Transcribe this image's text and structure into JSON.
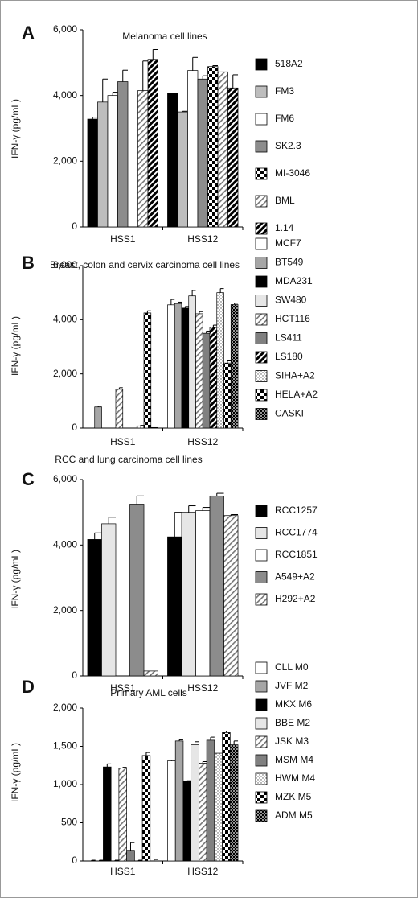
{
  "chart_data": [
    {
      "type": "bar",
      "panel": "A",
      "title": "Melanoma cell lines",
      "ylabel": "IFN-γ (pg/mL)",
      "categories": [
        "HSS1",
        "HSS12"
      ],
      "ylim": [
        0,
        6000
      ],
      "yticks": [
        0,
        {
          "value": 2000,
          "label": "2,000"
        },
        {
          "value": 4000,
          "label": "4,000"
        },
        {
          "value": 6000,
          "label": "6,000"
        }
      ],
      "series": [
        {
          "name": "518A2",
          "color": "#000000",
          "values": [
            3280,
            4080
          ],
          "errors": [
            60,
            null
          ]
        },
        {
          "name": "FM3",
          "color": "#bdbdbd",
          "values": [
            3800,
            3500
          ],
          "errors": [
            700,
            20
          ]
        },
        {
          "name": "FM6",
          "color": "#ffffff",
          "values": [
            4000,
            4760
          ],
          "errors": [
            100,
            400
          ]
        },
        {
          "name": "SK2.3",
          "color": "#8c8c8c",
          "values": [
            4420,
            4500
          ],
          "errors": [
            350,
            100
          ]
        },
        {
          "name": "MI-3046",
          "color": "#000000",
          "pattern": "checker",
          "values": [
            null,
            4880
          ],
          "errors": [
            null,
            30
          ]
        },
        {
          "name": "BML",
          "color": "#909090",
          "pattern": "hatch",
          "values": [
            4150,
            4720
          ],
          "errors": [
            900,
            null
          ]
        },
        {
          "name": "1.14",
          "color": "#000000",
          "pattern": "hatch-dark",
          "values": [
            5100,
            4230
          ],
          "errors": [
            300,
            400
          ]
        }
      ]
    },
    {
      "type": "bar",
      "panel": "B",
      "title": "Breast, colon and cervix carcinoma cell lines",
      "ylabel": "IFN-γ (pg/mL)",
      "categories": [
        "HSS1",
        "HSS12"
      ],
      "ylim": [
        0,
        6000
      ],
      "yticks": [
        0,
        {
          "value": 2000,
          "label": "2,000"
        },
        {
          "value": 4000,
          "label": "4,000"
        },
        {
          "value": 6000,
          "label": "6,000"
        }
      ],
      "series": [
        {
          "name": "MCF7",
          "color": "#ffffff",
          "values": [
            0,
            4550
          ],
          "errors": [
            null,
            200
          ]
        },
        {
          "name": "BT549",
          "color": "#a6a6a6",
          "values": [
            780,
            4600
          ],
          "errors": [
            30,
            50
          ]
        },
        {
          "name": "MDA231",
          "color": "#000000",
          "values": [
            0,
            4430
          ],
          "errors": [
            null,
            60
          ]
        },
        {
          "name": "SW480",
          "color": "#e6e6e6",
          "values": [
            0,
            4880
          ],
          "errors": [
            null,
            200
          ]
        },
        {
          "name": "HCT116",
          "color": "#909090",
          "pattern": "hatch",
          "values": [
            1430,
            4220
          ],
          "errors": [
            60,
            80
          ]
        },
        {
          "name": "LS411",
          "color": "#808080",
          "values": [
            0,
            3500
          ],
          "errors": [
            null,
            80
          ]
        },
        {
          "name": "LS180",
          "color": "#000000",
          "pattern": "hatch-dark",
          "values": [
            0,
            3720
          ],
          "errors": [
            null,
            80
          ]
        },
        {
          "name": "SIHA+A2",
          "color": "#909090",
          "pattern": "dots",
          "values": [
            80,
            5000
          ],
          "errors": [
            20,
            150
          ]
        },
        {
          "name": "HELA+A2",
          "color": "#000000",
          "pattern": "checker",
          "values": [
            4250,
            2400
          ],
          "errors": [
            80,
            80
          ]
        },
        {
          "name": "CASKI",
          "color": "#000000",
          "pattern": "dots-dense",
          "values": [
            20,
            4560
          ],
          "errors": [
            null,
            50
          ]
        }
      ]
    },
    {
      "type": "bar",
      "panel": "C",
      "title": "RCC and lung  carcinoma cell lines",
      "ylabel": "IFN-γ (pg/mL)",
      "categories": [
        "HSS1",
        "HSS12"
      ],
      "ylim": [
        0,
        6000
      ],
      "yticks": [
        0,
        {
          "value": 2000,
          "label": "2,000"
        },
        {
          "value": 4000,
          "label": "4,000"
        },
        {
          "value": 6000,
          "label": "6,000"
        }
      ],
      "series": [
        {
          "name": "RCC1257",
          "color": "#000000",
          "values": [
            4170,
            4250
          ],
          "errors": [
            200,
            750
          ]
        },
        {
          "name": "RCC1774",
          "color": "#e6e6e6",
          "values": [
            4650,
            5000
          ],
          "errors": [
            200,
            200
          ]
        },
        {
          "name": "RCC1851",
          "color": "#ffffff",
          "values": [
            0,
            5050
          ],
          "errors": [
            null,
            100
          ]
        },
        {
          "name": "A549+A2",
          "color": "#8c8c8c",
          "values": [
            5250,
            5500
          ],
          "errors": [
            250,
            80
          ]
        },
        {
          "name": "H292+A2",
          "color": "#909090",
          "pattern": "hatch",
          "values": [
            150,
            4900
          ],
          "errors": [
            null,
            30
          ]
        }
      ]
    },
    {
      "type": "bar",
      "panel": "D",
      "title": "Primary AML cells",
      "ylabel": "IFN-γ (pg/mL)",
      "categories": [
        "HSS1",
        "HSS12"
      ],
      "ylim": [
        0,
        2000
      ],
      "yticks": [
        0,
        500,
        {
          "value": 1000,
          "label": "1,000"
        },
        {
          "value": 1500,
          "label": "1,500"
        },
        {
          "value": 2000,
          "label": "2,000"
        }
      ],
      "series": [
        {
          "name": "CLL M0",
          "color": "#ffffff",
          "values": [
            0,
            1310
          ],
          "errors": [
            10,
            10
          ]
        },
        {
          "name": "JVF M2",
          "color": "#a6a6a6",
          "values": [
            0,
            1570
          ],
          "errors": [
            10,
            15
          ]
        },
        {
          "name": "MKX M6",
          "color": "#000000",
          "values": [
            1230,
            1040
          ],
          "errors": [
            40,
            10
          ]
        },
        {
          "name": "BBE M2",
          "color": "#e6e6e6",
          "values": [
            0,
            1520
          ],
          "errors": [
            10,
            40
          ]
        },
        {
          "name": "JSK M3",
          "color": "#909090",
          "pattern": "hatch",
          "values": [
            1215,
            1280
          ],
          "errors": [
            10,
            20
          ]
        },
        {
          "name": "MSM M4",
          "color": "#808080",
          "values": [
            140,
            1580
          ],
          "errors": [
            100,
            40
          ]
        },
        {
          "name": "HWM M4",
          "color": "#909090",
          "pattern": "dots",
          "values": [
            0,
            1410
          ],
          "errors": [
            10,
            null
          ]
        },
        {
          "name": "MZK M5",
          "color": "#000000",
          "pattern": "checker",
          "values": [
            1380,
            1680
          ],
          "errors": [
            40,
            20
          ]
        },
        {
          "name": "ADM  M5",
          "color": "#000000",
          "pattern": "dots-dense",
          "values": [
            0,
            1520
          ],
          "errors": [
            20,
            50
          ]
        }
      ]
    }
  ]
}
